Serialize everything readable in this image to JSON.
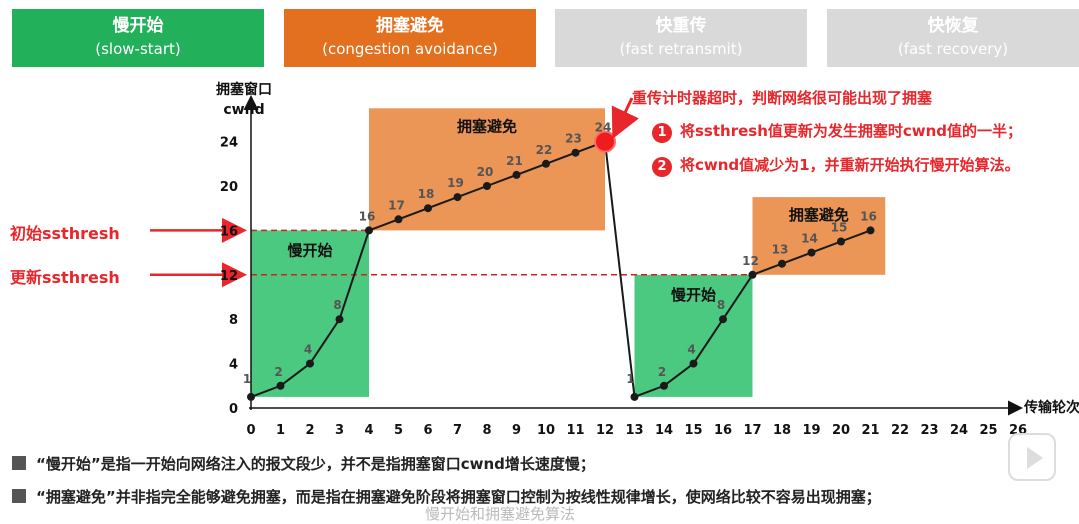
{
  "headers": [
    {
      "title": "慢开始",
      "subtitle": "(slow-start)",
      "color": "#22b05a"
    },
    {
      "title": "拥塞避免",
      "subtitle": "(congestion avoidance)",
      "color": "#e2701e"
    },
    {
      "title": "快重传",
      "subtitle": "(fast retransmit)",
      "color": "#d9d9d9"
    },
    {
      "title": "快恢复",
      "subtitle": "(fast recovery)",
      "color": "#d9d9d9"
    }
  ],
  "side_labels": {
    "initial": "初始ssthresh",
    "updated": "更新ssthresh"
  },
  "annotations": {
    "timeout": "重传计时器超时，判断网络很可能出现了拥塞",
    "step1_num": "1",
    "step1": "将ssthresh值更新为发生拥塞时cwnd值的一半；",
    "step2_num": "2",
    "step2": "将cwnd值减少为1，并重新开始执行慢开始算法。"
  },
  "notes": [
    "“慢开始”是指一开始向网络注入的报文段少，并不是指拥塞窗口cwnd增长速度慢；",
    "“拥塞避免”并非指完全能够避免拥塞，而是指在拥塞避免阶段将拥塞窗口控制为按线性规律增长，使网络比较不容易出现拥塞；"
  ],
  "caption": "慢开始和拥塞避免算法",
  "chart_data": {
    "type": "line",
    "ylabel_line1": "拥塞窗口",
    "ylabel_line2": "cwnd",
    "xlabel": "传输轮次",
    "x_ticks": [
      0,
      1,
      2,
      3,
      4,
      5,
      6,
      7,
      8,
      9,
      10,
      11,
      12,
      13,
      14,
      15,
      16,
      17,
      18,
      19,
      20,
      21,
      22,
      23,
      24,
      25,
      26
    ],
    "y_ticks": [
      0,
      4,
      8,
      12,
      16,
      20,
      24
    ],
    "xlim": [
      0,
      26
    ],
    "ylim": [
      0,
      26
    ],
    "ssthresh_initial": 16,
    "ssthresh_updated": 12,
    "series": [
      {
        "x": [
          0,
          1,
          2,
          3,
          4,
          5,
          6,
          7,
          8,
          9,
          10,
          11,
          12,
          13,
          14,
          15,
          16,
          17,
          18,
          19,
          20,
          21
        ],
        "y": [
          1,
          2,
          4,
          8,
          16,
          17,
          18,
          19,
          20,
          21,
          22,
          23,
          24,
          1,
          2,
          4,
          8,
          12,
          13,
          14,
          15,
          16
        ]
      }
    ],
    "regions": [
      {
        "label": "慢开始",
        "x0": 0,
        "x1": 4,
        "y0": 1,
        "y1": 16,
        "color": "#2dbf6a"
      },
      {
        "label": "拥塞避免",
        "x0": 4,
        "x1": 12,
        "y0": 16,
        "y1": 27,
        "color": "#e8823a"
      },
      {
        "label": "慢开始",
        "x0": 13,
        "x1": 17,
        "y0": 1,
        "y1": 12,
        "color": "#2dbf6a"
      },
      {
        "label": "拥塞避免",
        "x0": 17,
        "x1": 21.5,
        "y0": 12,
        "y1": 19,
        "color": "#e8823a"
      }
    ],
    "timeout_point": {
      "x": 12,
      "y": 24
    }
  }
}
